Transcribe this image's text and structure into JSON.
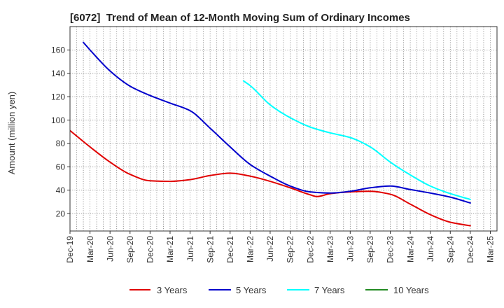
{
  "chart_data": {
    "type": "line",
    "title": "[6072]  Trend of Mean of 12-Month Moving Sum of Ordinary Incomes",
    "xlabel": "",
    "ylabel": "Amount (million yen)",
    "xlim": [
      "2019-12",
      "2025-04"
    ],
    "ylim": [
      5,
      180
    ],
    "grid": true,
    "legend_position": "bottom",
    "x_ticks": [
      {
        "label": "Dec-19",
        "x": "2019-12"
      },
      {
        "label": "Mar-20",
        "x": "2020-03"
      },
      {
        "label": "Jun-20",
        "x": "2020-06"
      },
      {
        "label": "Sep-20",
        "x": "2020-09"
      },
      {
        "label": "Dec-20",
        "x": "2020-12"
      },
      {
        "label": "Mar-21",
        "x": "2021-03"
      },
      {
        "label": "Jun-21",
        "x": "2021-06"
      },
      {
        "label": "Sep-21",
        "x": "2021-09"
      },
      {
        "label": "Dec-21",
        "x": "2021-12"
      },
      {
        "label": "Mar-22",
        "x": "2022-03"
      },
      {
        "label": "Jun-22",
        "x": "2022-06"
      },
      {
        "label": "Sep-22",
        "x": "2022-09"
      },
      {
        "label": "Dec-22",
        "x": "2022-12"
      },
      {
        "label": "Mar-23",
        "x": "2023-03"
      },
      {
        "label": "Jun-23",
        "x": "2023-06"
      },
      {
        "label": "Sep-23",
        "x": "2023-09"
      },
      {
        "label": "Dec-23",
        "x": "2023-12"
      },
      {
        "label": "Mar-24",
        "x": "2024-03"
      },
      {
        "label": "Jun-24",
        "x": "2024-06"
      },
      {
        "label": "Sep-24",
        "x": "2024-09"
      },
      {
        "label": "Dec-24",
        "x": "2024-12"
      },
      {
        "label": "Mar-25",
        "x": "2025-03"
      }
    ],
    "y_ticks": [
      20,
      40,
      60,
      80,
      100,
      120,
      140,
      160
    ],
    "series": [
      {
        "name": "3 Years",
        "color": "#e00000",
        "points": [
          {
            "x": "2019-12",
            "y": 91
          },
          {
            "x": "2020-03",
            "y": 77
          },
          {
            "x": "2020-06",
            "y": 64
          },
          {
            "x": "2020-09",
            "y": 53.5
          },
          {
            "x": "2020-12",
            "y": 48
          },
          {
            "x": "2021-03",
            "y": 47.5
          },
          {
            "x": "2021-06",
            "y": 49
          },
          {
            "x": "2021-09",
            "y": 52.5
          },
          {
            "x": "2021-12",
            "y": 54.5
          },
          {
            "x": "2022-03",
            "y": 52
          },
          {
            "x": "2022-06",
            "y": 47.5
          },
          {
            "x": "2022-09",
            "y": 42
          },
          {
            "x": "2022-12",
            "y": 36
          },
          {
            "x": "2023-01",
            "y": 34.5
          },
          {
            "x": "2023-03",
            "y": 37
          },
          {
            "x": "2023-06",
            "y": 38.5
          },
          {
            "x": "2023-09",
            "y": 39
          },
          {
            "x": "2023-12",
            "y": 36.5
          },
          {
            "x": "2024-03",
            "y": 28
          },
          {
            "x": "2024-06",
            "y": 19
          },
          {
            "x": "2024-09",
            "y": 12.5
          },
          {
            "x": "2024-12",
            "y": 9.5
          }
        ]
      },
      {
        "name": "5 Years",
        "color": "#0000cc",
        "points": [
          {
            "x": "2020-02",
            "y": 166.5
          },
          {
            "x": "2020-03",
            "y": 160
          },
          {
            "x": "2020-06",
            "y": 142
          },
          {
            "x": "2020-09",
            "y": 129
          },
          {
            "x": "2020-12",
            "y": 121
          },
          {
            "x": "2021-03",
            "y": 114.5
          },
          {
            "x": "2021-06",
            "y": 108
          },
          {
            "x": "2021-09",
            "y": 93
          },
          {
            "x": "2021-12",
            "y": 77
          },
          {
            "x": "2022-03",
            "y": 62
          },
          {
            "x": "2022-06",
            "y": 52
          },
          {
            "x": "2022-09",
            "y": 43.5
          },
          {
            "x": "2022-12",
            "y": 38.5
          },
          {
            "x": "2023-03",
            "y": 37.5
          },
          {
            "x": "2023-06",
            "y": 39
          },
          {
            "x": "2023-09",
            "y": 42
          },
          {
            "x": "2023-12",
            "y": 43.5
          },
          {
            "x": "2024-03",
            "y": 40.5
          },
          {
            "x": "2024-06",
            "y": 37.5
          },
          {
            "x": "2024-09",
            "y": 34
          },
          {
            "x": "2024-12",
            "y": 29
          }
        ]
      },
      {
        "name": "7 Years",
        "color": "#00ffff",
        "points": [
          {
            "x": "2022-02",
            "y": 133.5
          },
          {
            "x": "2022-03",
            "y": 129.5
          },
          {
            "x": "2022-06",
            "y": 113
          },
          {
            "x": "2022-09",
            "y": 102
          },
          {
            "x": "2022-12",
            "y": 94
          },
          {
            "x": "2023-03",
            "y": 89
          },
          {
            "x": "2023-06",
            "y": 85
          },
          {
            "x": "2023-09",
            "y": 77
          },
          {
            "x": "2023-12",
            "y": 64
          },
          {
            "x": "2024-03",
            "y": 53
          },
          {
            "x": "2024-06",
            "y": 43.5
          },
          {
            "x": "2024-09",
            "y": 37
          },
          {
            "x": "2024-12",
            "y": 32
          }
        ]
      },
      {
        "name": "10 Years",
        "color": "#228b22",
        "points": []
      }
    ]
  }
}
